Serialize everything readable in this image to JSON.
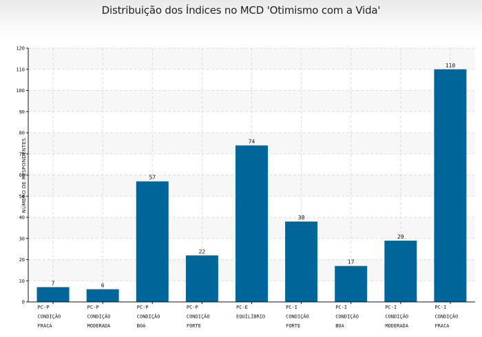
{
  "chart_data": {
    "type": "bar",
    "title": "Distribuição dos Índices no MCD 'Otimismo com a Vida'",
    "ylabel": "NÚMERO DE RESPONDENTES",
    "xlabel": "",
    "ylim": [
      0,
      120
    ],
    "yticks": [
      0,
      10,
      20,
      30,
      40,
      50,
      60,
      70,
      80,
      90,
      100,
      110,
      120
    ],
    "grid": true,
    "categories": [
      [
        "PC-P",
        "CONDIÇÃO",
        "FRACA"
      ],
      [
        "PC-P",
        "CONDIÇÃO",
        "MODERADA"
      ],
      [
        "PC-P",
        "CONDIÇÃO",
        "BOA"
      ],
      [
        "PC-P",
        "CONDIÇÃO",
        "FORTE"
      ],
      [
        "PC-E",
        "EQUILÍBRIO"
      ],
      [
        "PC-I",
        "CONDIÇÃO",
        "FORTE"
      ],
      [
        "PC-I",
        "CONDIÇÃO",
        "BOA"
      ],
      [
        "PC-I",
        "CONDIÇÃO",
        "MODERADA"
      ],
      [
        "PC-I",
        "CONDIÇÃO",
        "FRACA"
      ]
    ],
    "values": [
      7,
      6,
      57,
      22,
      74,
      38,
      17,
      29,
      110
    ],
    "bar_color": "#006699"
  }
}
